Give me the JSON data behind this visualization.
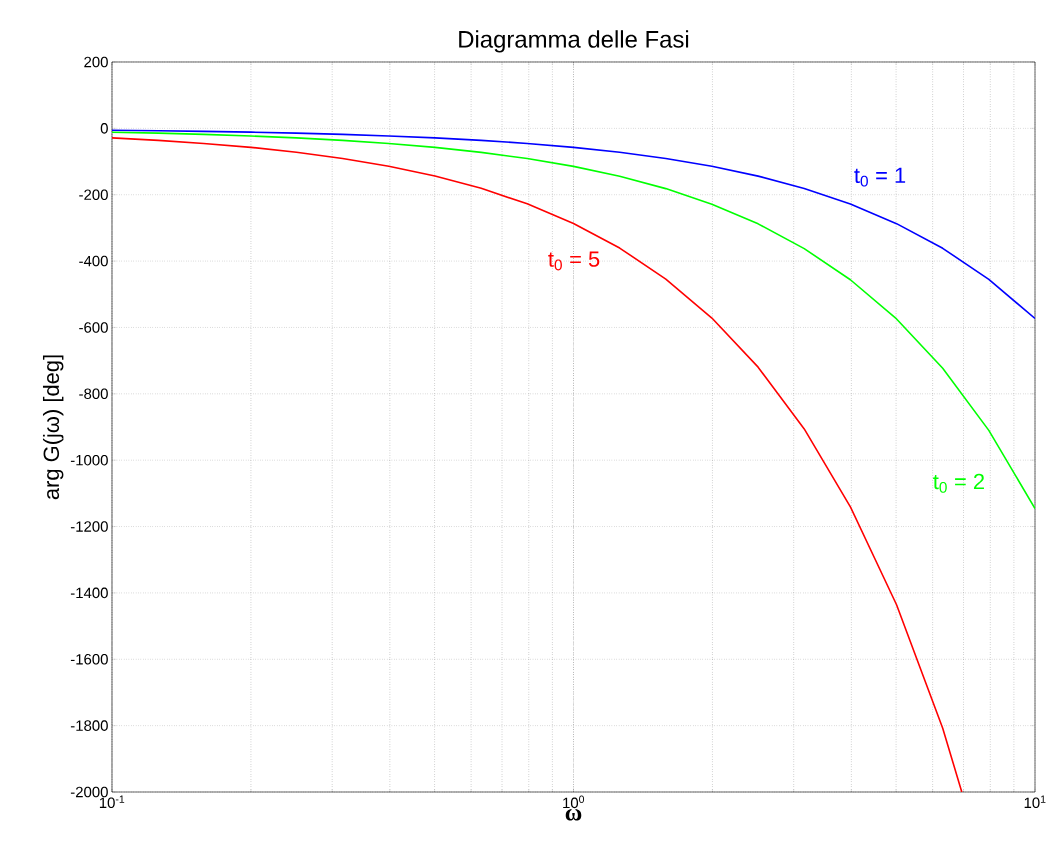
{
  "chart_data": {
    "type": "line",
    "title": "Diagramma delle Fasi",
    "xlabel": "ω",
    "ylabel": "arg G(jω) [deg]",
    "log": "x",
    "grid": true,
    "xlim": [
      0.1,
      10
    ],
    "ylim": [
      -2000,
      200
    ],
    "xticks": [
      {
        "value": 0.1,
        "label": "10$^{-1}$"
      },
      {
        "value": 1,
        "label": "10$^{0}$"
      },
      {
        "value": 10,
        "label": "10$^{1}$"
      }
    ],
    "yticks": [
      -2000,
      -1800,
      -1600,
      -1400,
      -1200,
      -1000,
      -800,
      -600,
      -400,
      -200,
      0,
      200
    ],
    "x": [
      0.1,
      0.126,
      0.158,
      0.2,
      0.251,
      0.316,
      0.398,
      0.501,
      0.631,
      0.794,
      1,
      1.259,
      1.585,
      1.995,
      2.512,
      3.162,
      3.981,
      5.012,
      6.31,
      7.943,
      10
    ],
    "series": [
      {
        "name": "t$_{0}$ = 1",
        "color": "#0000ff",
        "values": [
          -5.7,
          -7.2,
          -9.1,
          -11.4,
          -14.4,
          -18.1,
          -22.8,
          -28.7,
          -36.2,
          -45.5,
          -57.3,
          -72.1,
          -90.8,
          -114.3,
          -143.9,
          -181.2,
          -228.1,
          -287.2,
          -361.5,
          -455.1,
          -573
        ]
      },
      {
        "name": "t$_{0}$ = 2",
        "color": "#00ff00",
        "values": [
          -11.5,
          -14.4,
          -18.2,
          -22.9,
          -28.8,
          -36.2,
          -45.6,
          -57.4,
          -72.3,
          -91,
          -114.6,
          -144.3,
          -181.6,
          -228.6,
          -287.8,
          -362.4,
          -456.2,
          -574.3,
          -723,
          -910.2,
          -1145.9
        ]
      },
      {
        "name": "t$_{0}$ = 5",
        "color": "#ff0000",
        "x": [
          0.1,
          0.126,
          0.158,
          0.2,
          0.251,
          0.316,
          0.398,
          0.501,
          0.631,
          0.794,
          1,
          1.259,
          1.585,
          1.995,
          2.512,
          3.162,
          3.981,
          5.012,
          6.31,
          6.94
        ],
        "values": [
          -28.6,
          -36.1,
          -45.4,
          -57.2,
          -72,
          -90.6,
          -114,
          -143.6,
          -180.8,
          -227.5,
          -286.5,
          -360.7,
          -454.1,
          -571.7,
          -719.7,
          -905.9,
          -1140.5,
          -1435.8,
          -1807.6,
          -2000
        ]
      }
    ]
  }
}
